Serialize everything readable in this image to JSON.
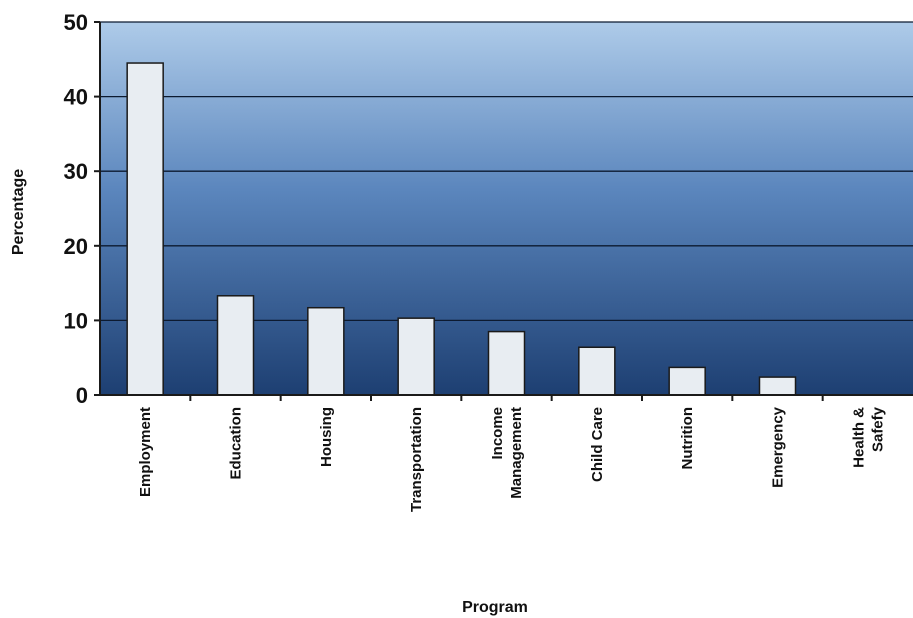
{
  "chart_data": {
    "type": "bar",
    "categories": [
      [
        "Employment"
      ],
      [
        "Education"
      ],
      [
        "Housing"
      ],
      [
        "Transportation"
      ],
      [
        "Income",
        "Management"
      ],
      [
        "Child Care"
      ],
      [
        "Nutrition"
      ],
      [
        "Emergency"
      ],
      [
        "Health &",
        "Safefy"
      ]
    ],
    "values": [
      44.5,
      13.3,
      11.7,
      10.3,
      8.5,
      6.4,
      3.7,
      2.4,
      0
    ],
    "xlabel": "Program",
    "ylabel": "Percentage",
    "ylim": [
      0,
      50
    ],
    "yticks": [
      0,
      10,
      20,
      30,
      40,
      50
    ],
    "grid": true,
    "colors": {
      "bar_fill": "#e8edf2",
      "bar_stroke": "#1a1a1a",
      "plot_top": "#aecbe9",
      "plot_bottom": "#1d3f72",
      "gridline": "#0c1a30"
    }
  }
}
